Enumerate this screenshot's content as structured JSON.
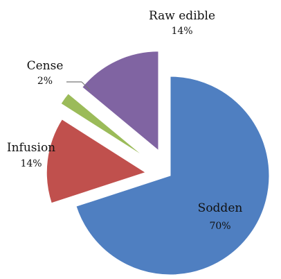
{
  "chart_data": {
    "type": "pie",
    "title": "",
    "slices": [
      {
        "label": "Sodden",
        "value": 70,
        "value_label": "70%",
        "color": "#4F7FC1"
      },
      {
        "label": "Infusion",
        "value": 14,
        "value_label": "14%",
        "color": "#C0504D"
      },
      {
        "label": "Cense",
        "value": 2,
        "value_label": "2%",
        "color": "#9BBB59"
      },
      {
        "label": "Raw edible",
        "value": 14,
        "value_label": "14%",
        "color": "#8064A2"
      }
    ],
    "exploded": true,
    "legend": "none",
    "data_labels": "outside-or-inside with category name and percentage"
  }
}
